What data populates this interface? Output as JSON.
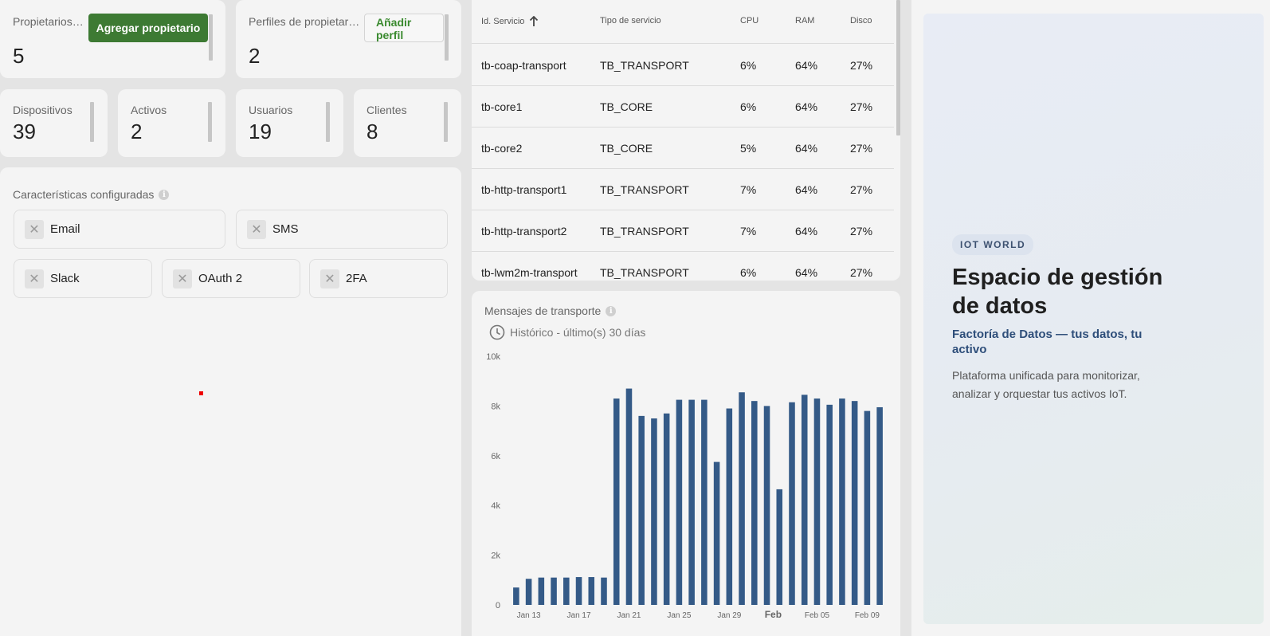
{
  "owners": {
    "label": "Propietarios…",
    "value": "5",
    "button": "Agregar propietario"
  },
  "owner_profiles": {
    "label": "Perfiles de propietar…",
    "value": "2",
    "button": "Añadir perfil"
  },
  "stats": [
    {
      "label": "Dispositivos",
      "value": "39"
    },
    {
      "label": "Activos",
      "value": "2"
    },
    {
      "label": "Usuarios",
      "value": "19"
    },
    {
      "label": "Clientes",
      "value": "8"
    }
  ],
  "features": {
    "title": "Características configuradas",
    "chips": [
      "Email",
      "SMS",
      "Slack",
      "OAuth 2",
      "2FA"
    ]
  },
  "services_table": {
    "columns": [
      "Id. Servicio",
      "Tipo de servicio",
      "CPU",
      "RAM",
      "Disco"
    ],
    "sort_icon": "arrow-up-icon",
    "rows": [
      [
        "tb-coap-transport",
        "TB_TRANSPORT",
        "6%",
        "64%",
        "27%"
      ],
      [
        "tb-core1",
        "TB_CORE",
        "6%",
        "64%",
        "27%"
      ],
      [
        "tb-core2",
        "TB_CORE",
        "5%",
        "64%",
        "27%"
      ],
      [
        "tb-http-transport1",
        "TB_TRANSPORT",
        "7%",
        "64%",
        "27%"
      ],
      [
        "tb-http-transport2",
        "TB_TRANSPORT",
        "7%",
        "64%",
        "27%"
      ],
      [
        "tb-lwm2m-transport",
        "TB_TRANSPORT",
        "6%",
        "64%",
        "27%"
      ]
    ]
  },
  "transport": {
    "title": "Mensajes de transporte",
    "history": "Histórico - último(s) 30 días",
    "clock_icon": "clock-icon"
  },
  "chart_data": {
    "type": "bar",
    "title": "Mensajes de transporte",
    "ylim": [
      0,
      10000
    ],
    "yticks": [
      "0",
      "2k",
      "4k",
      "6k",
      "8k",
      "10k"
    ],
    "xtick_labels": [
      "Jan 13",
      "Jan 17",
      "Jan 21",
      "Jan 25",
      "Jan 29",
      "Feb",
      "Feb 05",
      "Feb 09"
    ],
    "categories": [
      "Jan 12",
      "Jan 13",
      "Jan 14",
      "Jan 15",
      "Jan 16",
      "Jan 17",
      "Jan 18",
      "Jan 19",
      "Jan 20",
      "Jan 21",
      "Jan 22",
      "Jan 23",
      "Jan 24",
      "Jan 25",
      "Jan 26",
      "Jan 27",
      "Jan 28",
      "Jan 29",
      "Jan 30",
      "Jan 31",
      "Feb 01",
      "Feb 02",
      "Feb 03",
      "Feb 04",
      "Feb 05",
      "Feb 06",
      "Feb 07",
      "Feb 08",
      "Feb 09",
      "Feb 10"
    ],
    "values": [
      700,
      1050,
      1100,
      1100,
      1100,
      1120,
      1120,
      1100,
      8300,
      8700,
      7600,
      7500,
      7700,
      8250,
      8250,
      8250,
      5750,
      7900,
      8550,
      8200,
      8000,
      4650,
      8150,
      8450,
      8300,
      8050,
      8300,
      8200,
      7800,
      7950
    ],
    "color": "#345a87"
  },
  "promo": {
    "badge": "IOT WORLD",
    "title": "Espacio de gestión de datos",
    "subtitle": "Factoría de Datos — tus datos, tu activo",
    "description": "Plataforma unificada para monitorizar, analizar y orquestar tus activos IoT."
  }
}
